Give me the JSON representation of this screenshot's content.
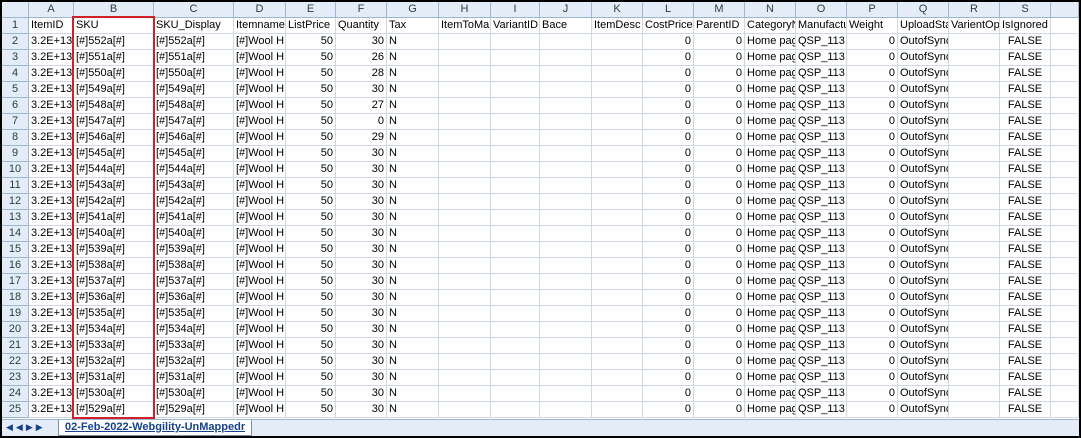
{
  "sheet": {
    "columns": [
      "A",
      "B",
      "C",
      "D",
      "E",
      "F",
      "G",
      "H",
      "I",
      "J",
      "K",
      "L",
      "M",
      "N",
      "O",
      "P",
      "Q",
      "R",
      "S"
    ],
    "row_numbers": [
      1,
      2,
      3,
      4,
      5,
      6,
      7,
      8,
      9,
      10,
      11,
      12,
      13,
      14,
      15,
      16,
      17,
      18,
      19,
      20,
      21,
      22,
      23,
      24,
      25
    ],
    "headers": [
      "ItemID",
      "SKU",
      "SKU_Display",
      "Itemname",
      "ListPrice",
      "Quantity",
      "Tax",
      "ItemToMa",
      "VariantID",
      "Bace",
      "ItemDesc",
      "CostPrice",
      "ParentID",
      "CategoryN",
      "Manufactu",
      "Weight",
      "UploadSta",
      "VarientOp",
      "IsIgnored"
    ],
    "rows": [
      [
        "3.2E+13",
        "[#]552a[#]",
        "[#]552a[#]",
        "[#]Wool H",
        50,
        30,
        "N",
        "",
        "",
        "",
        "",
        0,
        0,
        "Home pag",
        "QSP_113",
        0,
        "OutofSync",
        "",
        "FALSE"
      ],
      [
        "3.2E+13",
        "[#]551a[#]",
        "[#]551a[#]",
        "[#]Wool H",
        50,
        26,
        "N",
        "",
        "",
        "",
        "",
        0,
        0,
        "Home pag",
        "QSP_113",
        0,
        "OutofSync",
        "",
        "FALSE"
      ],
      [
        "3.2E+13",
        "[#]550a[#]",
        "[#]550a[#]",
        "[#]Wool H",
        50,
        28,
        "N",
        "",
        "",
        "",
        "",
        0,
        0,
        "Home pag",
        "QSP_113",
        0,
        "OutofSync",
        "",
        "FALSE"
      ],
      [
        "3.2E+13",
        "[#]549a[#]",
        "[#]549a[#]",
        "[#]Wool H",
        50,
        30,
        "N",
        "",
        "",
        "",
        "",
        0,
        0,
        "Home pag",
        "QSP_113",
        0,
        "OutofSync",
        "",
        "FALSE"
      ],
      [
        "3.2E+13",
        "[#]548a[#]",
        "[#]548a[#]",
        "[#]Wool H",
        50,
        27,
        "N",
        "",
        "",
        "",
        "",
        0,
        0,
        "Home pag",
        "QSP_113",
        0,
        "OutofSync",
        "",
        "FALSE"
      ],
      [
        "3.2E+13",
        "[#]547a[#]",
        "[#]547a[#]",
        "[#]Wool H",
        50,
        0,
        "N",
        "",
        "",
        "",
        "",
        0,
        0,
        "Home pag",
        "QSP_113",
        0,
        "OutofSync",
        "",
        "FALSE"
      ],
      [
        "3.2E+13",
        "[#]546a[#]",
        "[#]546a[#]",
        "[#]Wool H",
        50,
        29,
        "N",
        "",
        "",
        "",
        "",
        0,
        0,
        "Home pag",
        "QSP_113",
        0,
        "OutofSync",
        "",
        "FALSE"
      ],
      [
        "3.2E+13",
        "[#]545a[#]",
        "[#]545a[#]",
        "[#]Wool H",
        50,
        30,
        "N",
        "",
        "",
        "",
        "",
        0,
        0,
        "Home pag",
        "QSP_113",
        0,
        "OutofSync",
        "",
        "FALSE"
      ],
      [
        "3.2E+13",
        "[#]544a[#]",
        "[#]544a[#]",
        "[#]Wool H",
        50,
        30,
        "N",
        "",
        "",
        "",
        "",
        0,
        0,
        "Home pag",
        "QSP_113",
        0,
        "OutofSync",
        "",
        "FALSE"
      ],
      [
        "3.2E+13",
        "[#]543a[#]",
        "[#]543a[#]",
        "[#]Wool H",
        50,
        30,
        "N",
        "",
        "",
        "",
        "",
        0,
        0,
        "Home pag",
        "QSP_113",
        0,
        "OutofSync",
        "",
        "FALSE"
      ],
      [
        "3.2E+13",
        "[#]542a[#]",
        "[#]542a[#]",
        "[#]Wool H",
        50,
        30,
        "N",
        "",
        "",
        "",
        "",
        0,
        0,
        "Home pag",
        "QSP_113",
        0,
        "OutofSync",
        "",
        "FALSE"
      ],
      [
        "3.2E+13",
        "[#]541a[#]",
        "[#]541a[#]",
        "[#]Wool H",
        50,
        30,
        "N",
        "",
        "",
        "",
        "",
        0,
        0,
        "Home pag",
        "QSP_113",
        0,
        "OutofSync",
        "",
        "FALSE"
      ],
      [
        "3.2E+13",
        "[#]540a[#]",
        "[#]540a[#]",
        "[#]Wool H",
        50,
        30,
        "N",
        "",
        "",
        "",
        "",
        0,
        0,
        "Home pag",
        "QSP_113",
        0,
        "OutofSync",
        "",
        "FALSE"
      ],
      [
        "3.2E+13",
        "[#]539a[#]",
        "[#]539a[#]",
        "[#]Wool H",
        50,
        30,
        "N",
        "",
        "",
        "",
        "",
        0,
        0,
        "Home pag",
        "QSP_113",
        0,
        "OutofSync",
        "",
        "FALSE"
      ],
      [
        "3.2E+13",
        "[#]538a[#]",
        "[#]538a[#]",
        "[#]Wool H",
        50,
        30,
        "N",
        "",
        "",
        "",
        "",
        0,
        0,
        "Home pag",
        "QSP_113",
        0,
        "OutofSync",
        "",
        "FALSE"
      ],
      [
        "3.2E+13",
        "[#]537a[#]",
        "[#]537a[#]",
        "[#]Wool H",
        50,
        30,
        "N",
        "",
        "",
        "",
        "",
        0,
        0,
        "Home pag",
        "QSP_113",
        0,
        "OutofSync",
        "",
        "FALSE"
      ],
      [
        "3.2E+13",
        "[#]536a[#]",
        "[#]536a[#]",
        "[#]Wool H",
        50,
        30,
        "N",
        "",
        "",
        "",
        "",
        0,
        0,
        "Home pag",
        "QSP_113",
        0,
        "OutofSync",
        "",
        "FALSE"
      ],
      [
        "3.2E+13",
        "[#]535a[#]",
        "[#]535a[#]",
        "[#]Wool H",
        50,
        30,
        "N",
        "",
        "",
        "",
        "",
        0,
        0,
        "Home pag",
        "QSP_113",
        0,
        "OutofSync",
        "",
        "FALSE"
      ],
      [
        "3.2E+13",
        "[#]534a[#]",
        "[#]534a[#]",
        "[#]Wool H",
        50,
        30,
        "N",
        "",
        "",
        "",
        "",
        0,
        0,
        "Home pag",
        "QSP_113",
        0,
        "OutofSync",
        "",
        "FALSE"
      ],
      [
        "3.2E+13",
        "[#]533a[#]",
        "[#]533a[#]",
        "[#]Wool H",
        50,
        30,
        "N",
        "",
        "",
        "",
        "",
        0,
        0,
        "Home pag",
        "QSP_113",
        0,
        "OutofSync",
        "",
        "FALSE"
      ],
      [
        "3.2E+13",
        "[#]532a[#]",
        "[#]532a[#]",
        "[#]Wool H",
        50,
        30,
        "N",
        "",
        "",
        "",
        "",
        0,
        0,
        "Home pag",
        "QSP_113",
        0,
        "OutofSync",
        "",
        "FALSE"
      ],
      [
        "3.2E+13",
        "[#]531a[#]",
        "[#]531a[#]",
        "[#]Wool H",
        50,
        30,
        "N",
        "",
        "",
        "",
        "",
        0,
        0,
        "Home pag",
        "QSP_113",
        0,
        "OutofSync",
        "",
        "FALSE"
      ],
      [
        "3.2E+13",
        "[#]530a[#]",
        "[#]530a[#]",
        "[#]Wool H",
        50,
        30,
        "N",
        "",
        "",
        "",
        "",
        0,
        0,
        "Home pag",
        "QSP_113",
        0,
        "OutofSync",
        "",
        "FALSE"
      ],
      [
        "3.2E+13",
        "[#]529a[#]",
        "[#]529a[#]",
        "[#]Wool H",
        50,
        30,
        "N",
        "",
        "",
        "",
        "",
        0,
        0,
        "Home pag",
        "QSP_113",
        0,
        "OutofSync",
        "",
        "FALSE"
      ]
    ],
    "sheet_tab": "02-Feb-2022-Webgility-UnMappedr"
  }
}
